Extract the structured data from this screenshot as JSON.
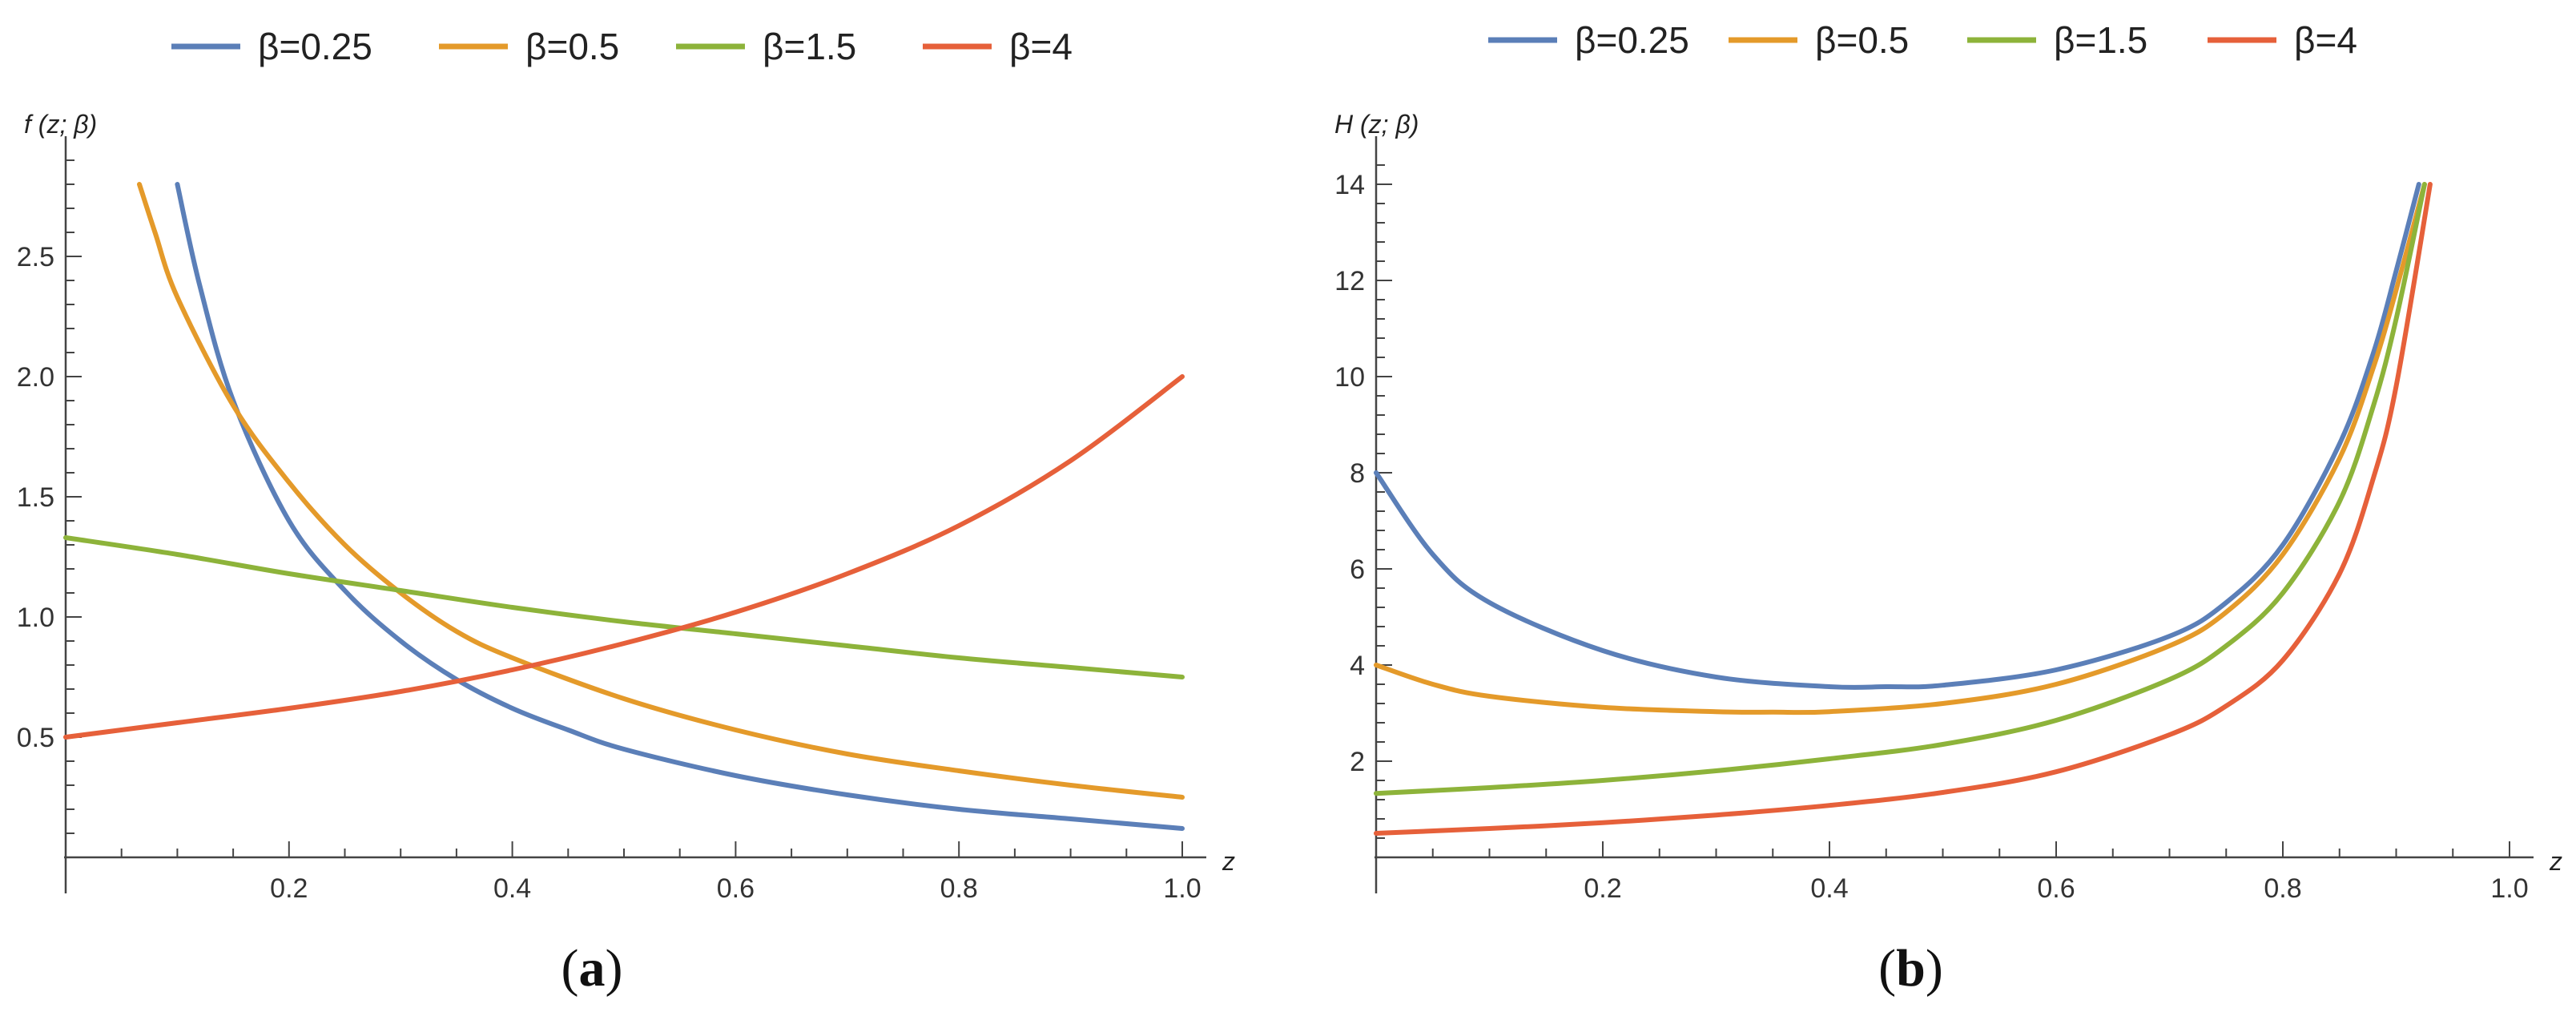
{
  "chart_data": [
    {
      "type": "line",
      "panel_label": "(a)",
      "panel_letter": "a",
      "xlabel": "z",
      "ylabel": "f (z; β)",
      "xlim": [
        0,
        1.0
      ],
      "ylim": [
        0,
        2.9
      ],
      "xticks": [
        0.2,
        0.4,
        0.6,
        0.8,
        1.0
      ],
      "xtick_labels": [
        "0.2",
        "0.4",
        "0.6",
        "0.8",
        "1.0"
      ],
      "yticks": [
        0.5,
        1.0,
        1.5,
        2.0,
        2.5
      ],
      "ytick_labels": [
        "0.5",
        "1.0",
        "1.5",
        "2.0",
        "2.5"
      ],
      "legend_position": "top",
      "series": [
        {
          "name": "β=0.25",
          "color": "#5b7fb8",
          "x": [
            0.1,
            0.12,
            0.15,
            0.2,
            0.25,
            0.3,
            0.35,
            0.4,
            0.45,
            0.5,
            0.6,
            0.7,
            0.8,
            0.9,
            1.0
          ],
          "y": [
            2.8,
            2.38,
            1.9,
            1.4,
            1.11,
            0.9,
            0.74,
            0.62,
            0.53,
            0.45,
            0.34,
            0.26,
            0.2,
            0.16,
            0.12
          ]
        },
        {
          "name": "β=0.5",
          "color": "#e49a2a",
          "x": [
            0.066,
            0.08,
            0.1,
            0.15,
            0.2,
            0.25,
            0.3,
            0.35,
            0.4,
            0.5,
            0.6,
            0.7,
            0.8,
            0.9,
            1.0
          ],
          "y": [
            2.8,
            2.6,
            2.33,
            1.88,
            1.56,
            1.3,
            1.1,
            0.94,
            0.83,
            0.66,
            0.53,
            0.43,
            0.36,
            0.3,
            0.25
          ]
        },
        {
          "name": "β=1.5",
          "color": "#8db33a",
          "x": [
            0,
            0.1,
            0.2,
            0.3,
            0.4,
            0.5,
            0.6,
            0.7,
            0.8,
            0.9,
            1.0
          ],
          "y": [
            1.33,
            1.26,
            1.18,
            1.11,
            1.04,
            0.98,
            0.93,
            0.88,
            0.83,
            0.79,
            0.75
          ]
        },
        {
          "name": "β=4",
          "color": "#e6603a",
          "x": [
            0,
            0.1,
            0.2,
            0.3,
            0.4,
            0.5,
            0.6,
            0.7,
            0.8,
            0.9,
            1.0
          ],
          "y": [
            0.5,
            0.56,
            0.62,
            0.69,
            0.78,
            0.89,
            1.02,
            1.18,
            1.38,
            1.65,
            2.0
          ]
        }
      ]
    },
    {
      "type": "line",
      "panel_label": "(b)",
      "panel_letter": "b",
      "xlabel": "z",
      "ylabel": "H (z; β)",
      "xlim": [
        0,
        1.0
      ],
      "ylim": [
        0,
        14.5
      ],
      "xticks": [
        0.2,
        0.4,
        0.6,
        0.8,
        1.0
      ],
      "xtick_labels": [
        "0.2",
        "0.4",
        "0.6",
        "0.8",
        "1.0"
      ],
      "yticks": [
        2,
        4,
        6,
        8,
        10,
        12,
        14
      ],
      "ytick_labels": [
        "2",
        "4",
        "6",
        "8",
        "10",
        "12",
        "14"
      ],
      "legend_position": "top",
      "series": [
        {
          "name": "β=0.25",
          "color": "#5b7fb8",
          "x": [
            0,
            0.05,
            0.1,
            0.2,
            0.3,
            0.4,
            0.45,
            0.5,
            0.6,
            0.7,
            0.75,
            0.8,
            0.85,
            0.88,
            0.9,
            0.92
          ],
          "y": [
            8.0,
            6.3,
            5.3,
            4.3,
            3.75,
            3.55,
            3.55,
            3.58,
            3.9,
            4.6,
            5.3,
            6.5,
            8.6,
            10.5,
            12.2,
            14.0
          ]
        },
        {
          "name": "β=0.5",
          "color": "#e49a2a",
          "x": [
            0,
            0.05,
            0.1,
            0.2,
            0.3,
            0.35,
            0.4,
            0.5,
            0.6,
            0.7,
            0.75,
            0.8,
            0.85,
            0.88,
            0.9,
            0.925
          ],
          "y": [
            4.0,
            3.6,
            3.35,
            3.12,
            3.03,
            3.02,
            3.03,
            3.2,
            3.6,
            4.4,
            5.1,
            6.3,
            8.3,
            10.2,
            11.8,
            14.0
          ]
        },
        {
          "name": "β=1.5",
          "color": "#8db33a",
          "x": [
            0,
            0.1,
            0.2,
            0.3,
            0.4,
            0.5,
            0.6,
            0.7,
            0.75,
            0.8,
            0.85,
            0.88,
            0.9,
            0.925
          ],
          "y": [
            1.33,
            1.45,
            1.6,
            1.8,
            2.05,
            2.35,
            2.85,
            3.7,
            4.4,
            5.5,
            7.4,
            9.4,
            11.2,
            14.0
          ]
        },
        {
          "name": "β=4",
          "color": "#e6603a",
          "x": [
            0,
            0.1,
            0.2,
            0.3,
            0.4,
            0.5,
            0.6,
            0.7,
            0.75,
            0.8,
            0.85,
            0.88,
            0.9,
            0.93
          ],
          "y": [
            0.5,
            0.6,
            0.72,
            0.88,
            1.08,
            1.35,
            1.78,
            2.55,
            3.15,
            4.1,
            5.9,
            7.9,
            9.8,
            14.0
          ]
        }
      ]
    }
  ]
}
